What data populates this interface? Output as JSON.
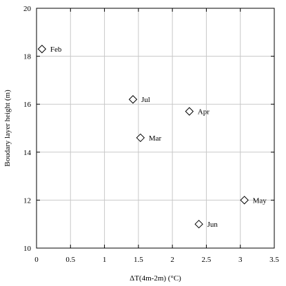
{
  "chart_data": {
    "type": "scatter",
    "title": "",
    "xlabel": "ΔT(4m-2m) (°C)",
    "ylabel": "Boudary layer height (m)",
    "xlim": [
      0,
      3.5
    ],
    "ylim": [
      10,
      20
    ],
    "xticks": [
      0,
      0.5,
      1,
      1.5,
      2,
      2.5,
      3,
      3.5
    ],
    "xtick_labels": [
      "0",
      "0.5",
      "1",
      "1.5",
      "2",
      "2.5",
      "3",
      "3.5"
    ],
    "yticks": [
      10,
      12,
      14,
      16,
      18,
      20
    ],
    "ytick_labels": [
      "10",
      "12",
      "14",
      "16",
      "18",
      "20"
    ],
    "grid": true,
    "marker": "diamond-open",
    "points": [
      {
        "label": "Feb",
        "x": 0.08,
        "y": 18.3
      },
      {
        "label": "Jul",
        "x": 1.42,
        "y": 16.2
      },
      {
        "label": "Apr",
        "x": 2.25,
        "y": 15.7
      },
      {
        "label": "Mar",
        "x": 1.53,
        "y": 14.6
      },
      {
        "label": "May",
        "x": 3.06,
        "y": 12.0
      },
      {
        "label": "Jun",
        "x": 2.39,
        "y": 11.0
      }
    ]
  }
}
